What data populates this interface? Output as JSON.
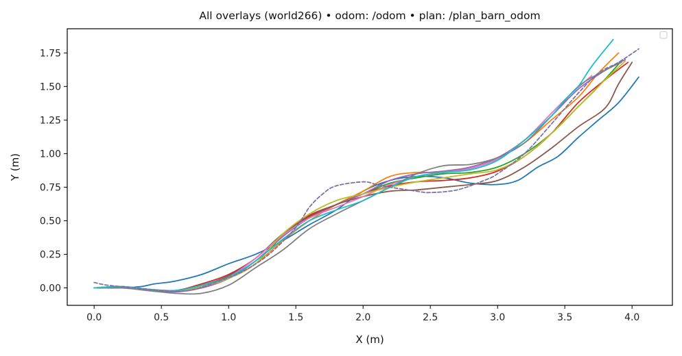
{
  "chart_data": {
    "type": "line",
    "title": "All overlays (world266) • odom: /odom • plan: /plan_barn_odom",
    "xlabel": "X (m)",
    "ylabel": "Y (m)",
    "xlim": [
      -0.2,
      4.3
    ],
    "ylim": [
      -0.13,
      1.93
    ],
    "xticks": [
      0.0,
      0.5,
      1.0,
      1.5,
      2.0,
      2.5,
      3.0,
      3.5,
      4.0
    ],
    "yticks": [
      0.0,
      0.25,
      0.5,
      0.75,
      1.0,
      1.25,
      1.5,
      1.75
    ],
    "xtick_labels": [
      "0.0",
      "0.5",
      "1.0",
      "1.5",
      "2.0",
      "2.5",
      "3.0",
      "3.5",
      "4.0"
    ],
    "ytick_labels": [
      "0.00",
      "0.25",
      "0.50",
      "0.75",
      "1.00",
      "1.25",
      "1.50",
      "1.75"
    ],
    "grid": false,
    "legend": "top-right (empty)",
    "series": [
      {
        "color": "#1f77b4",
        "style": "solid",
        "points": [
          [
            0,
            0
          ],
          [
            0.2,
            0.0
          ],
          [
            0.35,
            0.01
          ],
          [
            0.45,
            0.03
          ],
          [
            0.6,
            0.05
          ],
          [
            0.8,
            0.1
          ],
          [
            1.0,
            0.18
          ],
          [
            1.2,
            0.25
          ],
          [
            1.4,
            0.35
          ],
          [
            1.6,
            0.47
          ],
          [
            1.8,
            0.58
          ],
          [
            2.0,
            0.72
          ],
          [
            2.2,
            0.8
          ],
          [
            2.4,
            0.83
          ],
          [
            2.6,
            0.82
          ],
          [
            2.8,
            0.78
          ],
          [
            3.0,
            0.77
          ],
          [
            3.15,
            0.8
          ],
          [
            3.3,
            0.9
          ],
          [
            3.45,
            0.98
          ],
          [
            3.6,
            1.12
          ],
          [
            3.75,
            1.25
          ],
          [
            3.9,
            1.38
          ],
          [
            4.05,
            1.57
          ]
        ]
      },
      {
        "color": "#ff7f0e",
        "style": "solid",
        "points": [
          [
            0,
            0
          ],
          [
            0.2,
            0.01
          ],
          [
            0.4,
            -0.01
          ],
          [
            0.6,
            -0.02
          ],
          [
            0.8,
            0.0
          ],
          [
            1.0,
            0.07
          ],
          [
            1.2,
            0.18
          ],
          [
            1.4,
            0.35
          ],
          [
            1.6,
            0.5
          ],
          [
            1.8,
            0.62
          ],
          [
            2.0,
            0.72
          ],
          [
            2.2,
            0.83
          ],
          [
            2.4,
            0.86
          ],
          [
            2.6,
            0.86
          ],
          [
            2.8,
            0.9
          ],
          [
            3.0,
            0.97
          ],
          [
            3.2,
            1.08
          ],
          [
            3.4,
            1.25
          ],
          [
            3.6,
            1.42
          ],
          [
            3.75,
            1.6
          ],
          [
            3.9,
            1.75
          ]
        ]
      },
      {
        "color": "#2ca02c",
        "style": "solid",
        "points": [
          [
            0,
            0
          ],
          [
            0.2,
            0.01
          ],
          [
            0.4,
            -0.01
          ],
          [
            0.6,
            -0.02
          ],
          [
            0.8,
            0.02
          ],
          [
            1.0,
            0.08
          ],
          [
            1.2,
            0.2
          ],
          [
            1.4,
            0.38
          ],
          [
            1.6,
            0.53
          ],
          [
            1.8,
            0.62
          ],
          [
            2.0,
            0.7
          ],
          [
            2.2,
            0.78
          ],
          [
            2.4,
            0.82
          ],
          [
            2.6,
            0.85
          ],
          [
            2.8,
            0.86
          ],
          [
            3.0,
            0.9
          ],
          [
            3.2,
            1.0
          ],
          [
            3.4,
            1.15
          ],
          [
            3.6,
            1.35
          ],
          [
            3.75,
            1.5
          ],
          [
            3.93,
            1.7
          ]
        ]
      },
      {
        "color": "#d62728",
        "style": "solid",
        "points": [
          [
            0,
            0
          ],
          [
            0.2,
            0.01
          ],
          [
            0.4,
            -0.01
          ],
          [
            0.6,
            -0.02
          ],
          [
            0.8,
            0.03
          ],
          [
            1.0,
            0.1
          ],
          [
            1.2,
            0.22
          ],
          [
            1.4,
            0.4
          ],
          [
            1.6,
            0.54
          ],
          [
            1.8,
            0.62
          ],
          [
            2.0,
            0.7
          ],
          [
            2.2,
            0.76
          ],
          [
            2.4,
            0.79
          ],
          [
            2.6,
            0.8
          ],
          [
            2.8,
            0.82
          ],
          [
            3.0,
            0.87
          ],
          [
            3.2,
            0.98
          ],
          [
            3.4,
            1.15
          ],
          [
            3.6,
            1.38
          ],
          [
            3.8,
            1.55
          ],
          [
            3.97,
            1.68
          ]
        ]
      },
      {
        "color": "#9467bd",
        "style": "solid",
        "points": [
          [
            0,
            0
          ],
          [
            0.2,
            0.01
          ],
          [
            0.4,
            -0.01
          ],
          [
            0.6,
            -0.03
          ],
          [
            0.8,
            0.0
          ],
          [
            1.0,
            0.07
          ],
          [
            1.2,
            0.2
          ],
          [
            1.4,
            0.38
          ],
          [
            1.6,
            0.52
          ],
          [
            1.8,
            0.62
          ],
          [
            2.0,
            0.7
          ],
          [
            2.2,
            0.8
          ],
          [
            2.4,
            0.85
          ],
          [
            2.6,
            0.87
          ],
          [
            2.8,
            0.9
          ],
          [
            3.0,
            0.97
          ],
          [
            3.2,
            1.1
          ],
          [
            3.4,
            1.28
          ],
          [
            3.6,
            1.48
          ],
          [
            3.8,
            1.62
          ],
          [
            3.95,
            1.7
          ]
        ]
      },
      {
        "color": "#8c564b",
        "style": "solid",
        "points": [
          [
            0,
            0
          ],
          [
            0.2,
            0.01
          ],
          [
            0.4,
            -0.01
          ],
          [
            0.6,
            -0.02
          ],
          [
            0.8,
            0.02
          ],
          [
            1.0,
            0.09
          ],
          [
            1.2,
            0.22
          ],
          [
            1.4,
            0.4
          ],
          [
            1.6,
            0.53
          ],
          [
            1.8,
            0.62
          ],
          [
            2.0,
            0.68
          ],
          [
            2.2,
            0.72
          ],
          [
            2.4,
            0.73
          ],
          [
            2.6,
            0.75
          ],
          [
            2.8,
            0.77
          ],
          [
            3.0,
            0.8
          ],
          [
            3.2,
            0.9
          ],
          [
            3.4,
            1.04
          ],
          [
            3.6,
            1.2
          ],
          [
            3.8,
            1.34
          ],
          [
            3.9,
            1.52
          ],
          [
            4.0,
            1.68
          ]
        ]
      },
      {
        "color": "#e377c2",
        "style": "solid",
        "points": [
          [
            0,
            0
          ],
          [
            0.2,
            0.01
          ],
          [
            0.4,
            -0.01
          ],
          [
            0.6,
            -0.02
          ],
          [
            0.8,
            0.01
          ],
          [
            1.0,
            0.08
          ],
          [
            1.2,
            0.22
          ],
          [
            1.4,
            0.39
          ],
          [
            1.6,
            0.52
          ],
          [
            1.8,
            0.6
          ],
          [
            2.0,
            0.68
          ],
          [
            2.2,
            0.77
          ],
          [
            2.4,
            0.83
          ],
          [
            2.6,
            0.86
          ],
          [
            2.8,
            0.89
          ],
          [
            3.0,
            0.96
          ],
          [
            3.2,
            1.1
          ],
          [
            3.4,
            1.3
          ],
          [
            3.55,
            1.45
          ],
          [
            3.7,
            1.58
          ]
        ]
      },
      {
        "color": "#7f7f7f",
        "style": "solid",
        "points": [
          [
            0,
            0
          ],
          [
            0.2,
            0.0
          ],
          [
            0.4,
            -0.02
          ],
          [
            0.6,
            -0.04
          ],
          [
            0.8,
            -0.04
          ],
          [
            1.0,
            0.02
          ],
          [
            1.2,
            0.15
          ],
          [
            1.4,
            0.28
          ],
          [
            1.6,
            0.44
          ],
          [
            1.8,
            0.55
          ],
          [
            2.0,
            0.65
          ],
          [
            2.2,
            0.75
          ],
          [
            2.4,
            0.85
          ],
          [
            2.6,
            0.91
          ],
          [
            2.8,
            0.92
          ],
          [
            3.0,
            0.97
          ],
          [
            3.2,
            1.08
          ],
          [
            3.4,
            1.28
          ],
          [
            3.6,
            1.5
          ],
          [
            3.8,
            1.62
          ],
          [
            3.92,
            1.68
          ]
        ]
      },
      {
        "color": "#bcbd22",
        "style": "solid",
        "points": [
          [
            0,
            0
          ],
          [
            0.2,
            0.01
          ],
          [
            0.4,
            -0.01
          ],
          [
            0.6,
            -0.02
          ],
          [
            0.8,
            0.01
          ],
          [
            1.0,
            0.07
          ],
          [
            1.2,
            0.18
          ],
          [
            1.4,
            0.4
          ],
          [
            1.6,
            0.55
          ],
          [
            1.8,
            0.65
          ],
          [
            2.0,
            0.7
          ],
          [
            2.2,
            0.75
          ],
          [
            2.4,
            0.79
          ],
          [
            2.6,
            0.82
          ],
          [
            2.8,
            0.85
          ],
          [
            3.0,
            0.88
          ],
          [
            3.2,
            0.98
          ],
          [
            3.4,
            1.15
          ],
          [
            3.6,
            1.35
          ],
          [
            3.8,
            1.55
          ],
          [
            3.95,
            1.69
          ]
        ]
      },
      {
        "color": "#17becf",
        "style": "solid",
        "points": [
          [
            0,
            0
          ],
          [
            0.2,
            0.01
          ],
          [
            0.4,
            -0.01
          ],
          [
            0.6,
            -0.02
          ],
          [
            0.8,
            0.02
          ],
          [
            1.0,
            0.08
          ],
          [
            1.2,
            0.2
          ],
          [
            1.4,
            0.36
          ],
          [
            1.6,
            0.5
          ],
          [
            1.8,
            0.58
          ],
          [
            2.0,
            0.65
          ],
          [
            2.2,
            0.75
          ],
          [
            2.4,
            0.83
          ],
          [
            2.6,
            0.86
          ],
          [
            2.8,
            0.88
          ],
          [
            3.0,
            0.95
          ],
          [
            3.2,
            1.1
          ],
          [
            3.4,
            1.28
          ],
          [
            3.5,
            1.4
          ],
          [
            3.6,
            1.5
          ],
          [
            3.7,
            1.65
          ],
          [
            3.86,
            1.85
          ]
        ]
      },
      {
        "color": "#7b72a8",
        "style": "dashed",
        "points": [
          [
            0,
            0.04
          ],
          [
            0.1,
            0.02
          ],
          [
            0.3,
            0.0
          ],
          [
            0.5,
            -0.02
          ],
          [
            0.7,
            -0.02
          ],
          [
            0.9,
            0.04
          ],
          [
            1.1,
            0.12
          ],
          [
            1.3,
            0.25
          ],
          [
            1.5,
            0.45
          ],
          [
            1.6,
            0.6
          ],
          [
            1.7,
            0.7
          ],
          [
            1.8,
            0.76
          ],
          [
            2.0,
            0.79
          ],
          [
            2.1,
            0.77
          ],
          [
            2.2,
            0.75
          ],
          [
            2.4,
            0.72
          ],
          [
            2.5,
            0.71
          ],
          [
            2.7,
            0.73
          ],
          [
            2.9,
            0.8
          ],
          [
            3.0,
            0.85
          ],
          [
            3.2,
            1.0
          ],
          [
            3.4,
            1.22
          ],
          [
            3.6,
            1.45
          ],
          [
            3.75,
            1.6
          ],
          [
            3.9,
            1.68
          ],
          [
            4.05,
            1.78
          ]
        ]
      }
    ]
  }
}
